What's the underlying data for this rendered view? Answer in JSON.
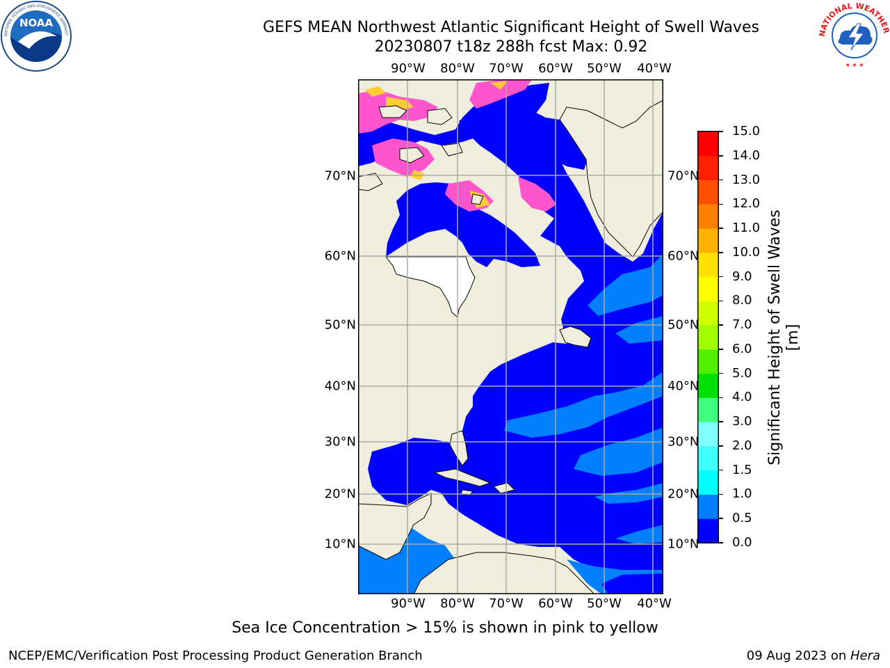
{
  "titles": {
    "line1": "GEFS MEAN Northwest Atlantic Significant Height of Swell Waves",
    "line2": "20230807 t18z 288h fcst   Max: 0.92"
  },
  "logos": {
    "left": {
      "icon": "noaa-logo-icon",
      "text": "NOAA",
      "ring_text": "NATIONAL OCEANIC AND ATMOSPHERIC ADMINISTRATION · U.S. DEPARTMENT OF COMMERCE"
    },
    "right": {
      "icon": "nws-logo-icon",
      "ring_text": "NATIONAL WEATHER SERVICE"
    }
  },
  "map": {
    "lon_labels": [
      "90°W",
      "80°W",
      "70°W",
      "60°W",
      "50°W",
      "40°W"
    ],
    "lat_labels": [
      "70°N",
      "60°N",
      "50°N",
      "40°N",
      "30°N",
      "20°N",
      "10°N"
    ],
    "colors": {
      "land": "#efeedd",
      "ocean_low": "#0000ff",
      "ocean_mid": "#0080ff",
      "ice_pink": "#ff55cc",
      "ice_yellow": "#ffcc33",
      "gridline": "#aaaaaa"
    }
  },
  "colorbar": {
    "label": "Significant Height of Swell Waves [m]",
    "ticks": [
      "0.0",
      "0.5",
      "1.0",
      "1.5",
      "2.0",
      "3.0",
      "4.0",
      "5.0",
      "6.0",
      "7.0",
      "8.0",
      "9.0",
      "10.0",
      "11.0",
      "12.0",
      "13.0",
      "14.0",
      "15.0"
    ],
    "colors": [
      "#0000ff",
      "#0080ff",
      "#00ffff",
      "#40ffff",
      "#80ffff",
      "#40ff80",
      "#00e000",
      "#50f000",
      "#a0ff00",
      "#d0ff00",
      "#ffff00",
      "#ffe000",
      "#ffb000",
      "#ff8000",
      "#ff5000",
      "#ff2000",
      "#ff0000"
    ]
  },
  "note": "Sea Ice Concentration > 15% is shown in pink to yellow",
  "footer": {
    "left": "NCEP/EMC/Verification Post Processing Product Generation Branch",
    "right_prefix": "09 Aug 2023 on ",
    "right_host": "Hera"
  }
}
